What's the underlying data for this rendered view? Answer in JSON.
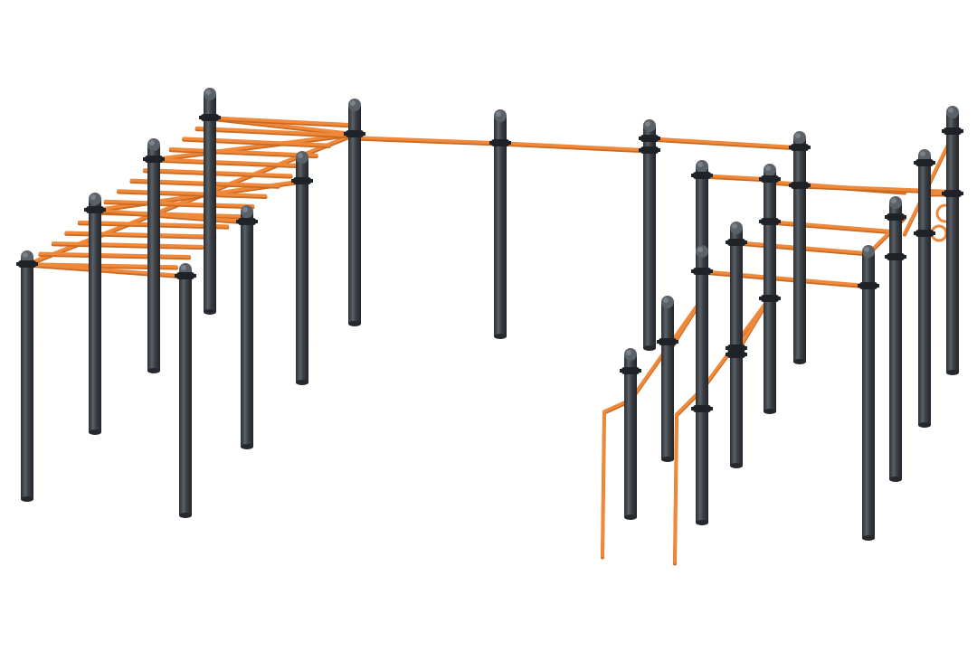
{
  "scene": {
    "subject": "outdoor-workout-rig",
    "colors": {
      "background": "#ffffff",
      "post": "#3a3f45",
      "post_highlight": "#5b6168",
      "post_shadow": "#25292d",
      "bar": "#f0883a",
      "bar_shadow": "#c96a22",
      "clamp": "#1f2327"
    }
  }
}
